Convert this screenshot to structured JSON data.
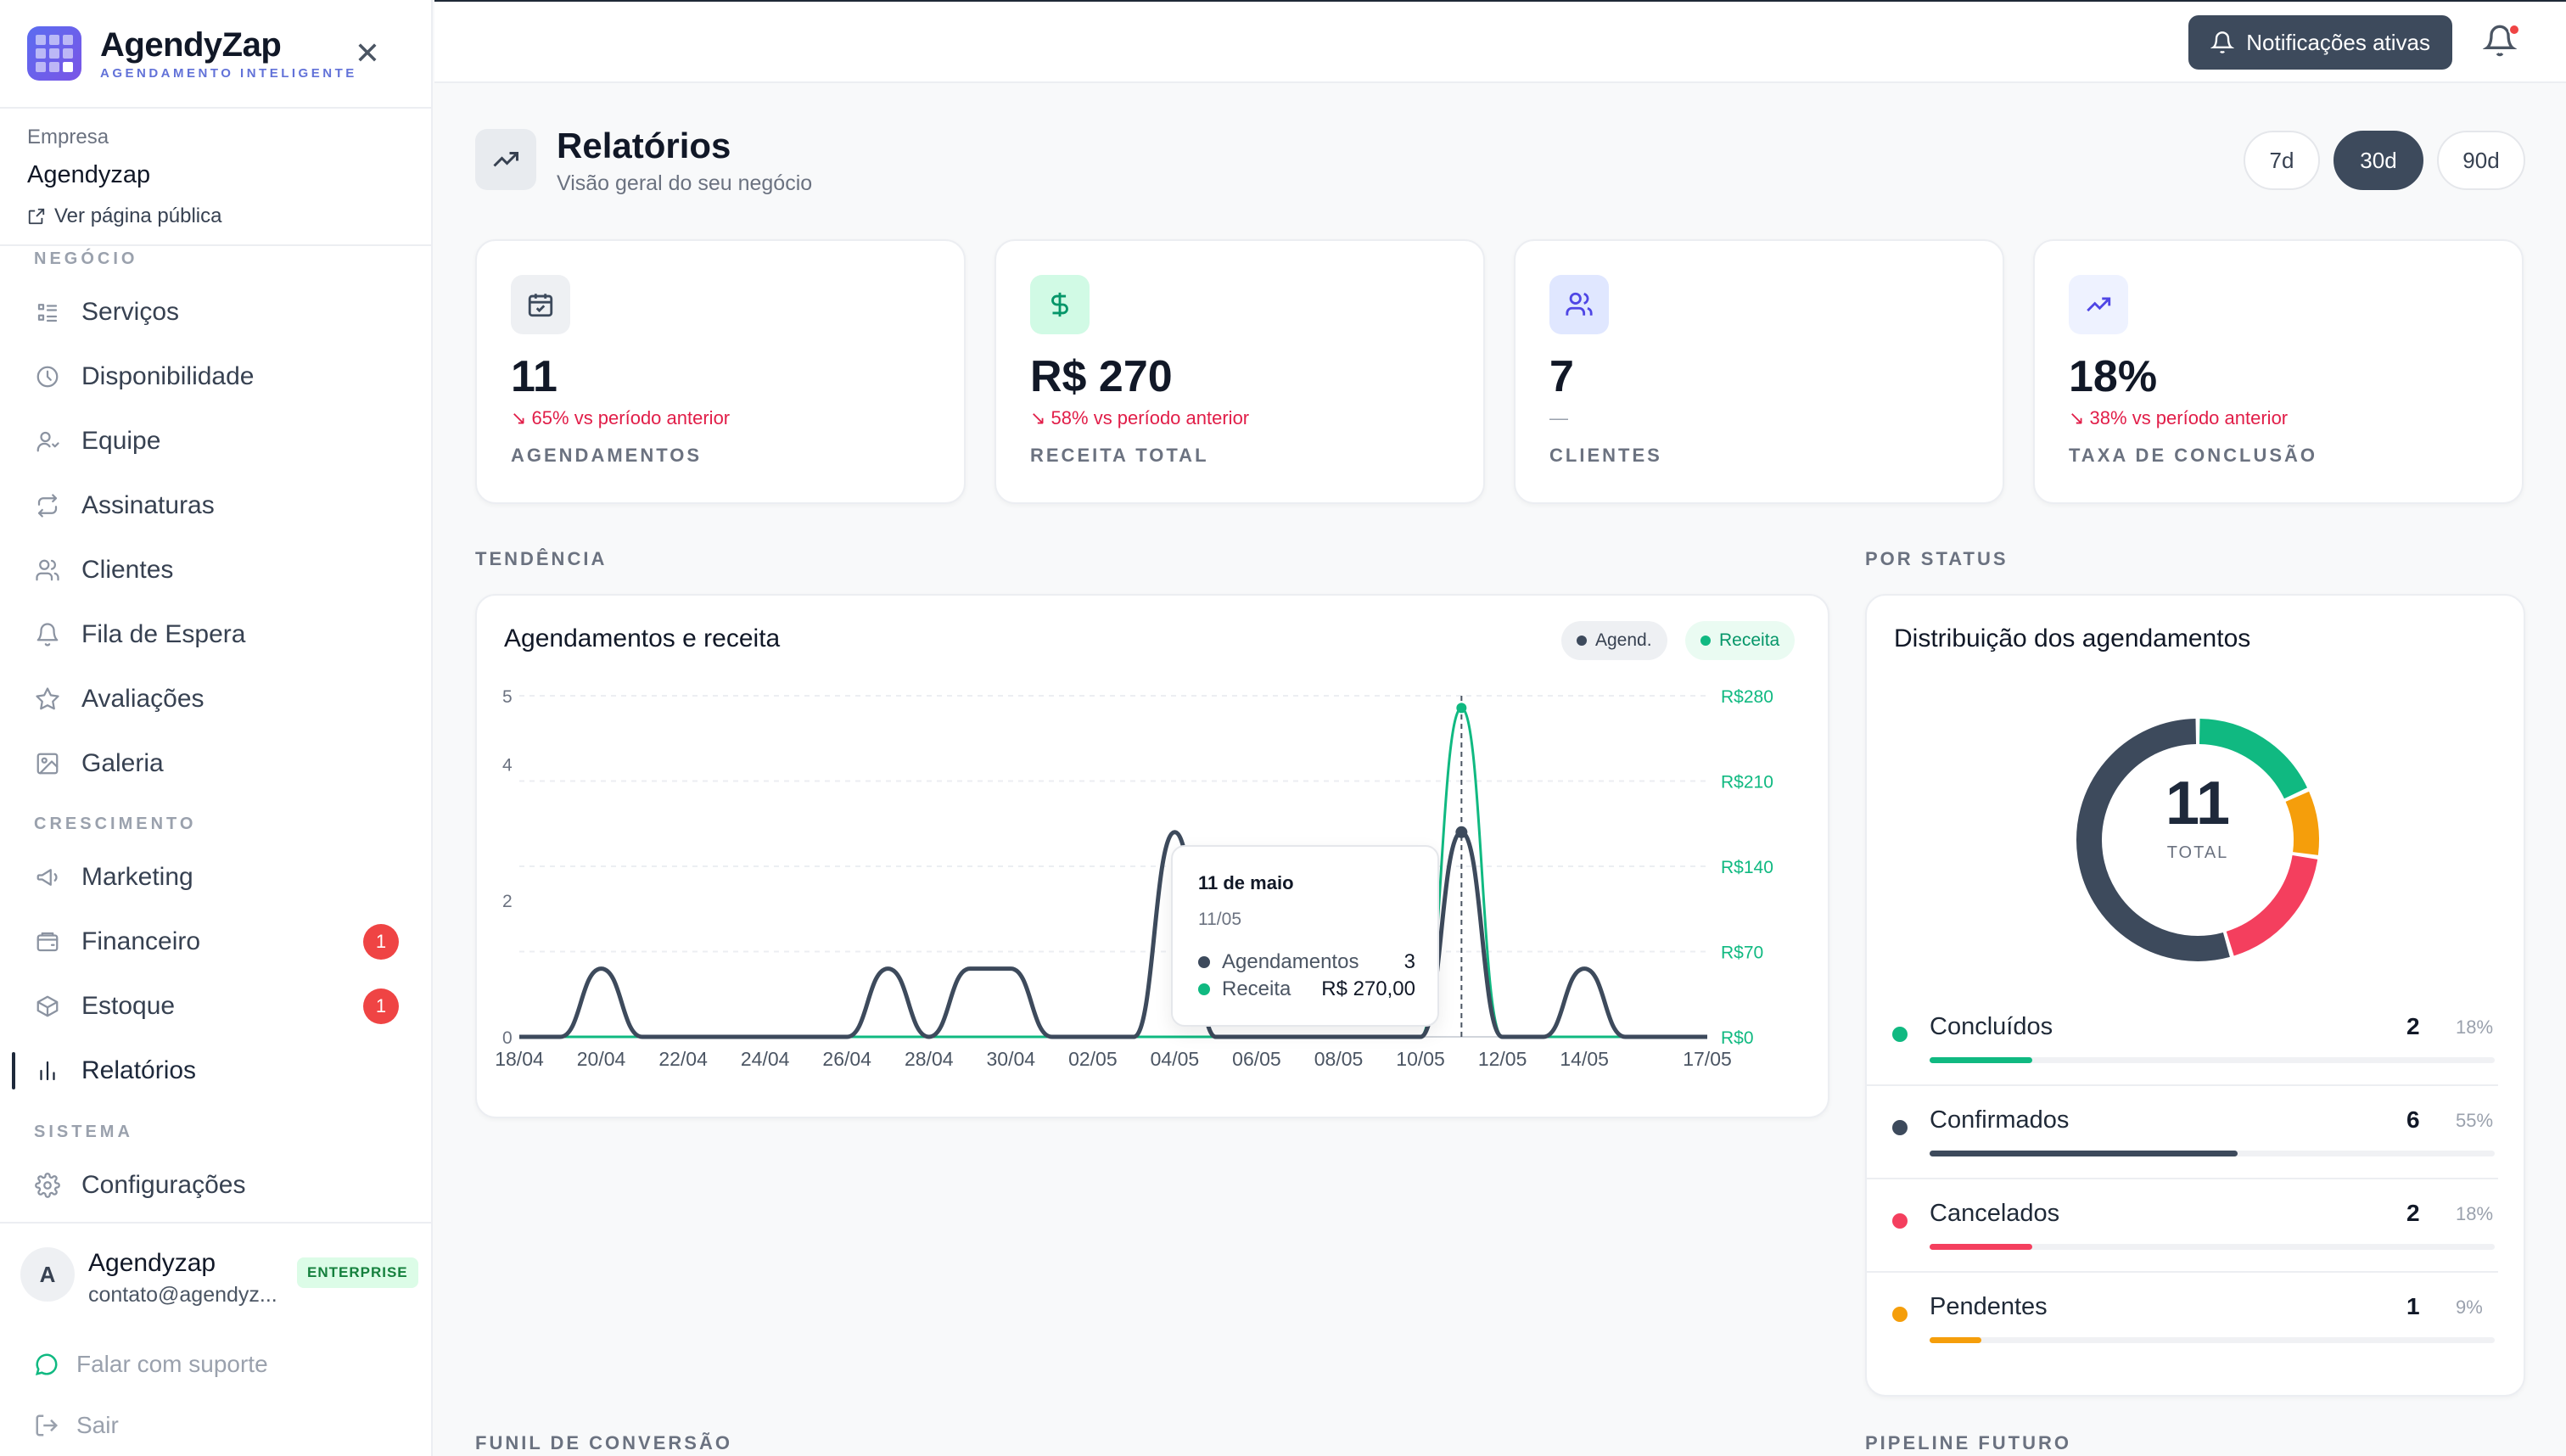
{
  "brand": {
    "name": "AgendyZap",
    "tagline": "AGENDAMENTO INTELIGENTE"
  },
  "company": {
    "label": "Empresa",
    "name": "Agendyzap",
    "public_link": "Ver página pública"
  },
  "sidebar": {
    "sections": [
      {
        "label": "NEGÓCIO",
        "items": [
          {
            "label": "Serviços",
            "icon": "list-icon"
          },
          {
            "label": "Disponibilidade",
            "icon": "clock-icon"
          },
          {
            "label": "Equipe",
            "icon": "user-icon"
          },
          {
            "label": "Assinaturas",
            "icon": "repeat-icon"
          },
          {
            "label": "Clientes",
            "icon": "users-icon"
          },
          {
            "label": "Fila de Espera",
            "icon": "bell-icon"
          },
          {
            "label": "Avaliações",
            "icon": "star-icon"
          },
          {
            "label": "Galeria",
            "icon": "image-icon"
          }
        ]
      },
      {
        "label": "CRESCIMENTO",
        "items": [
          {
            "label": "Marketing",
            "icon": "megaphone-icon"
          },
          {
            "label": "Financeiro",
            "icon": "wallet-icon",
            "badge": "1"
          },
          {
            "label": "Estoque",
            "icon": "box-icon",
            "badge": "1"
          },
          {
            "label": "Relatórios",
            "icon": "bar-chart-icon",
            "active": true
          }
        ]
      },
      {
        "label": "SISTEMA",
        "items": [
          {
            "label": "Configurações",
            "icon": "gear-icon"
          }
        ]
      }
    ]
  },
  "user": {
    "initial": "A",
    "name": "Agendyzap",
    "email": "contato@agendyz...",
    "plan": "ENTERPRISE"
  },
  "footer": {
    "support": "Falar com suporte",
    "logout": "Sair"
  },
  "topbar": {
    "notifications_label": "Notificações ativas"
  },
  "page": {
    "title": "Relatórios",
    "subtitle": "Visão geral do seu negócio"
  },
  "ranges": [
    {
      "label": "7d"
    },
    {
      "label": "30d",
      "active": true
    },
    {
      "label": "90d"
    }
  ],
  "kpis": [
    {
      "value": "11",
      "delta": "65% vs período anterior",
      "label": "AGENDAMENTOS",
      "icon": "calendar-check-icon"
    },
    {
      "value": "R$ 270",
      "delta": "58% vs período anterior",
      "label": "RECEITA TOTAL",
      "icon": "dollar-icon"
    },
    {
      "value": "7",
      "delta": "—",
      "label": "CLIENTES",
      "icon": "users-icon"
    },
    {
      "value": "18%",
      "delta": "38% vs período anterior",
      "label": "TAXA DE CONCLUSÃO",
      "icon": "trending-up-icon"
    }
  ],
  "sections": {
    "trend": "TENDÊNCIA",
    "status": "POR STATUS",
    "funnel": "FUNIL DE CONVERSÃO",
    "pipeline": "PIPELINE FUTURO"
  },
  "trend_card": {
    "title": "Agendamentos e receita",
    "legend_agend": "Agend.",
    "legend_receita": "Receita",
    "tooltip": {
      "title": "11 de maio",
      "date": "11/05",
      "agend_label": "Agendamentos",
      "agend_value": "3",
      "receita_label": "Receita",
      "receita_value": "R$ 270,00"
    }
  },
  "chart_data": [
    {
      "type": "line",
      "title": "Agendamentos e receita",
      "x": [
        "18/04",
        "19/04",
        "20/04",
        "21/04",
        "22/04",
        "23/04",
        "24/04",
        "25/04",
        "26/04",
        "27/04",
        "28/04",
        "29/04",
        "30/04",
        "01/05",
        "02/05",
        "03/05",
        "04/05",
        "05/05",
        "06/05",
        "07/05",
        "08/05",
        "09/05",
        "10/05",
        "11/05",
        "12/05",
        "13/05",
        "14/05",
        "15/05",
        "16/05",
        "17/05"
      ],
      "x_ticks": [
        "18/04",
        "20/04",
        "22/04",
        "24/04",
        "26/04",
        "28/04",
        "30/04",
        "02/05",
        "04/05",
        "06/05",
        "08/05",
        "10/05",
        "12/05",
        "14/05",
        "17/05"
      ],
      "y_left_ticks": [
        "0",
        "2",
        "4",
        "5"
      ],
      "y_left_lim": [
        0,
        5
      ],
      "y_right_ticks": [
        "R$0",
        "R$70",
        "R$140",
        "R$210",
        "R$280"
      ],
      "y_right_lim": [
        0,
        280
      ],
      "series": [
        {
          "name": "Agend.",
          "axis": "left",
          "color": "#3d4a5c",
          "values": [
            0,
            0,
            1,
            0,
            0,
            0,
            0,
            0,
            0,
            1,
            0,
            1,
            1,
            0,
            0,
            0,
            3,
            0,
            0,
            0,
            0,
            0,
            0,
            3,
            0,
            0,
            1,
            0,
            0,
            0
          ]
        },
        {
          "name": "Receita",
          "axis": "right",
          "color": "#10b981",
          "values": [
            0,
            0,
            0,
            0,
            0,
            0,
            0,
            0,
            0,
            0,
            0,
            0,
            0,
            0,
            0,
            0,
            0,
            0,
            0,
            0,
            0,
            0,
            0,
            270,
            0,
            0,
            0,
            0,
            0,
            0
          ]
        }
      ]
    },
    {
      "type": "pie",
      "title": "Distribuição dos agendamentos",
      "center_value": "11",
      "center_label": "TOTAL",
      "slices": [
        {
          "label": "Concluídos",
          "value": 2,
          "percent": "18%",
          "color": "#10b981"
        },
        {
          "label": "Confirmados",
          "value": 6,
          "percent": "55%",
          "color": "#3d4a5c"
        },
        {
          "label": "Cancelados",
          "value": 2,
          "percent": "18%",
          "color": "#f43f5e"
        },
        {
          "label": "Pendentes",
          "value": 1,
          "percent": "9%",
          "color": "#f59e0b"
        }
      ]
    }
  ],
  "status_card": {
    "title": "Distribuição dos agendamentos"
  }
}
